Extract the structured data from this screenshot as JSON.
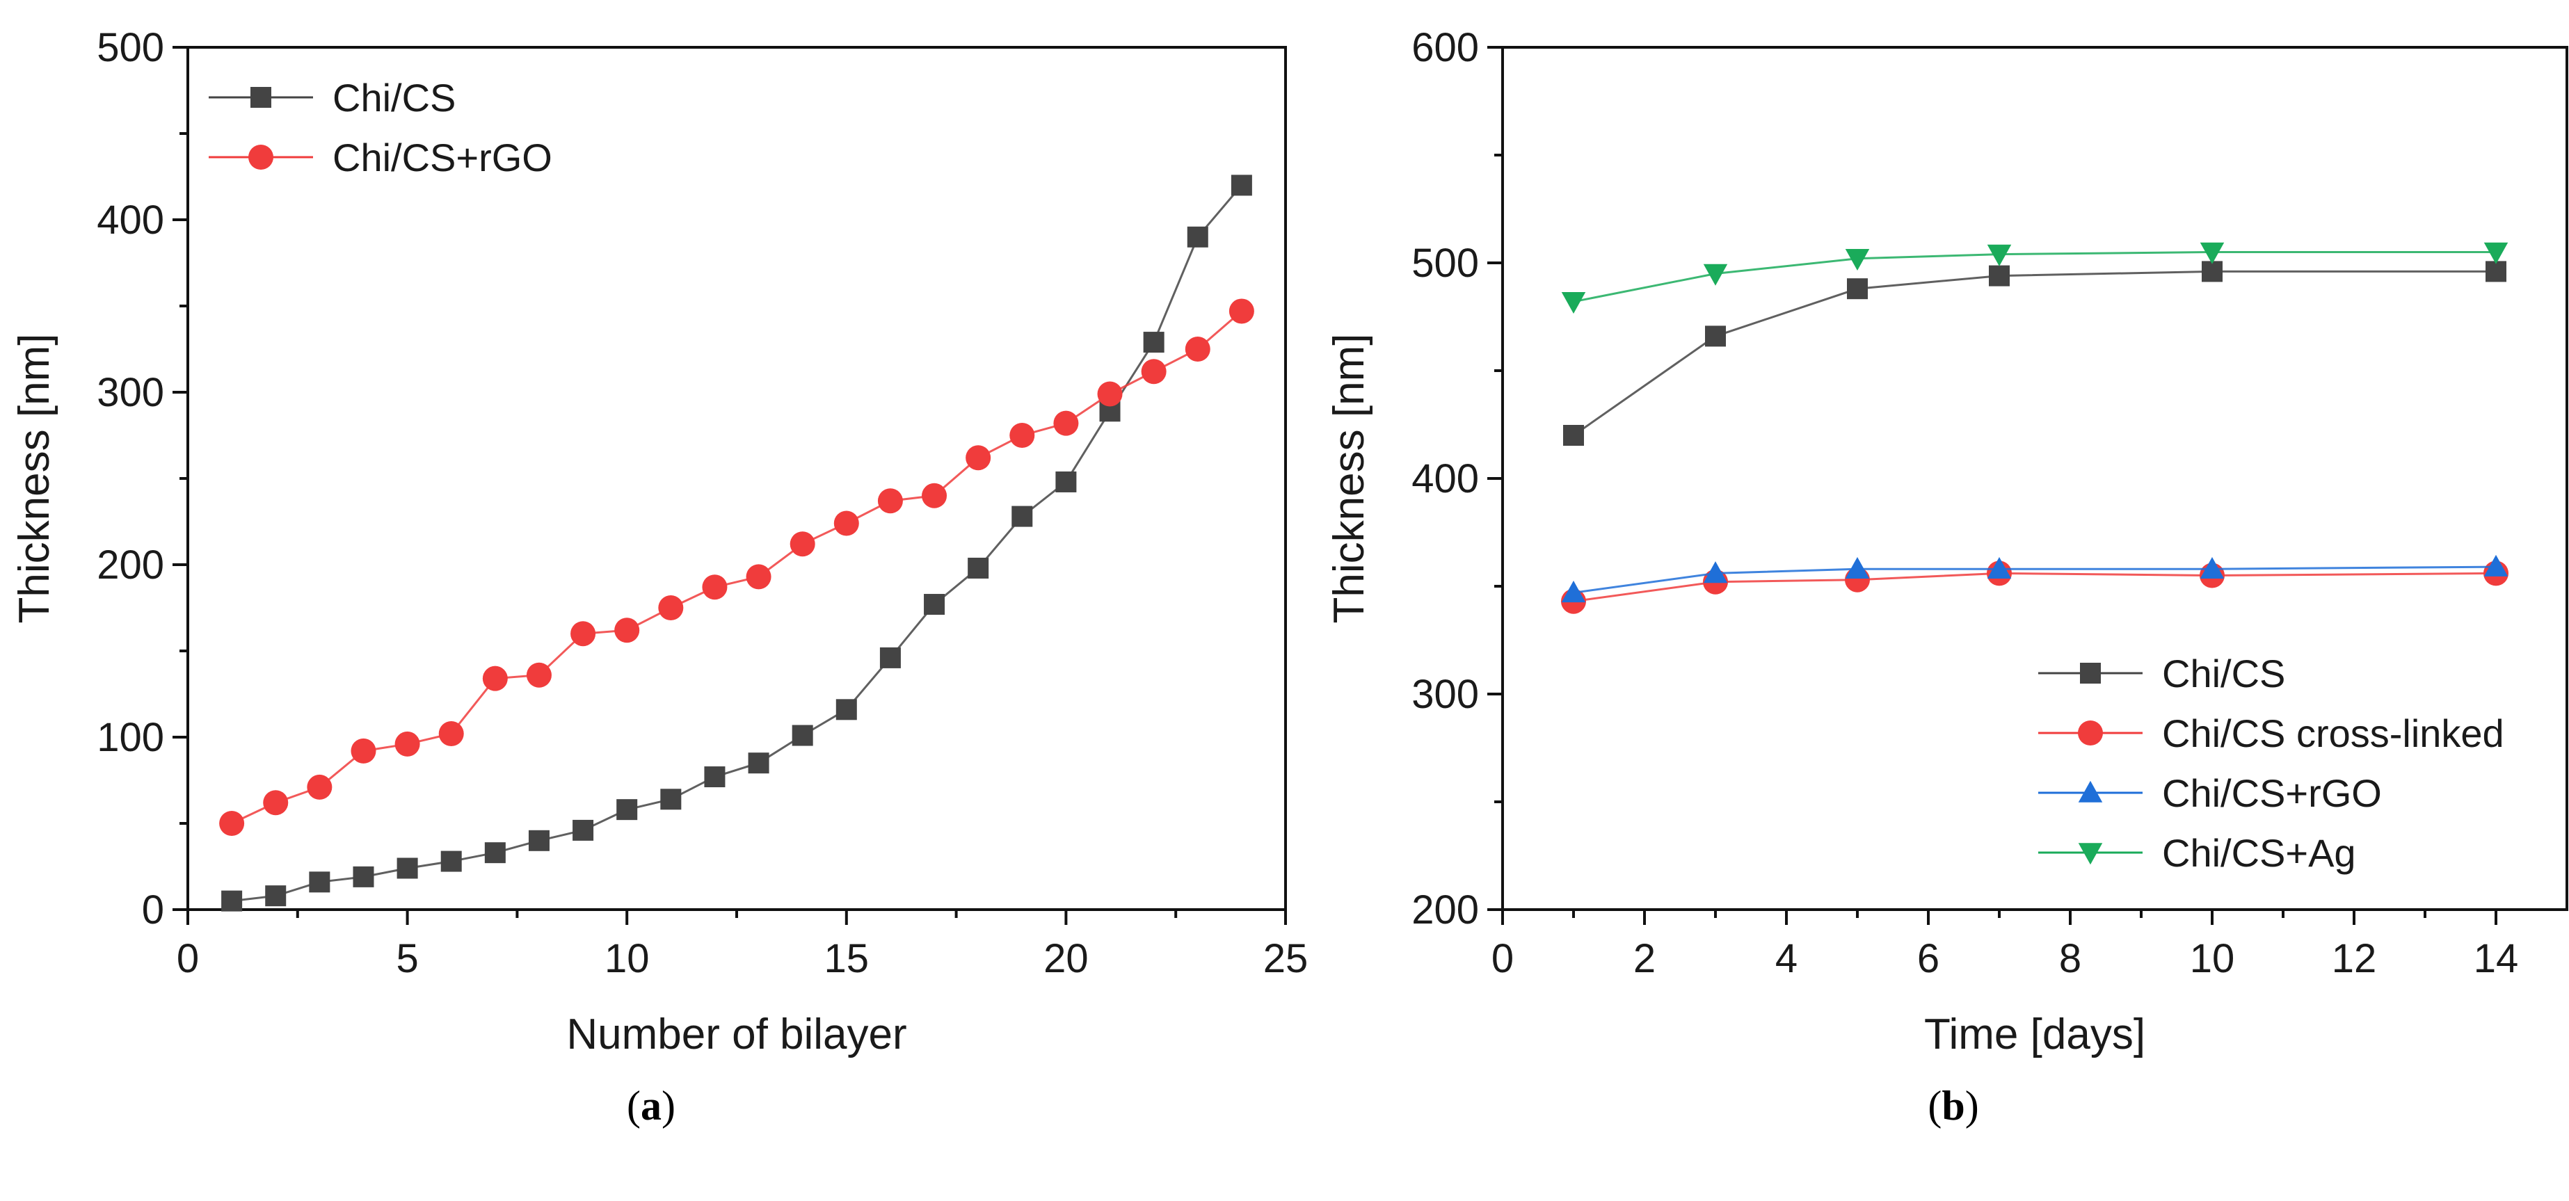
{
  "chart_data": [
    {
      "type": "line",
      "panel_label": "a",
      "title": "",
      "xlabel": "Number of bilayer",
      "ylabel": "Thickness [nm]",
      "xlim": [
        0,
        25
      ],
      "ylim": [
        0,
        500
      ],
      "xticks": [
        0,
        5,
        10,
        15,
        20,
        25
      ],
      "yticks": [
        0,
        100,
        200,
        300,
        400,
        500
      ],
      "legend_position": "top-left",
      "grid": false,
      "series": [
        {
          "name": "Chi/CS",
          "color": "#444444",
          "marker": "square",
          "x": [
            1,
            2,
            3,
            4,
            5,
            6,
            7,
            8,
            9,
            10,
            11,
            12,
            13,
            14,
            15,
            16,
            17,
            18,
            19,
            20,
            21,
            22,
            23,
            24
          ],
          "y": [
            5,
            8,
            16,
            19,
            24,
            28,
            33,
            40,
            46,
            58,
            64,
            77,
            85,
            101,
            116,
            146,
            177,
            198,
            228,
            248,
            289,
            329,
            390,
            420
          ]
        },
        {
          "name": "Chi/CS+rGO",
          "color": "#f03c3c",
          "marker": "circle",
          "x": [
            1,
            2,
            3,
            4,
            5,
            6,
            7,
            8,
            9,
            10,
            11,
            12,
            13,
            14,
            15,
            16,
            17,
            18,
            19,
            20,
            21,
            22,
            23,
            24
          ],
          "y": [
            50,
            62,
            71,
            92,
            96,
            102,
            134,
            136,
            160,
            162,
            175,
            187,
            193,
            212,
            224,
            237,
            240,
            262,
            275,
            282,
            299,
            312,
            325,
            347
          ]
        }
      ]
    },
    {
      "type": "line",
      "panel_label": "b",
      "title": "",
      "xlabel": "Time [days]",
      "ylabel": "Thickness [nm]",
      "xlim": [
        0,
        15
      ],
      "ylim": [
        200,
        600
      ],
      "xticks": [
        0,
        2,
        4,
        6,
        8,
        10,
        12,
        14
      ],
      "yticks": [
        200,
        300,
        400,
        500,
        600
      ],
      "legend_position": "bottom-right",
      "grid": false,
      "series": [
        {
          "name": "Chi/CS",
          "color": "#444444",
          "marker": "square",
          "x": [
            1,
            3,
            5,
            7,
            10,
            14
          ],
          "y": [
            420,
            466,
            488,
            494,
            496,
            496
          ]
        },
        {
          "name": "Chi/CS cross-linked",
          "color": "#f03c3c",
          "marker": "circle",
          "x": [
            1,
            3,
            5,
            7,
            10,
            14
          ],
          "y": [
            343,
            352,
            353,
            356,
            355,
            356
          ]
        },
        {
          "name": "Chi/CS+rGO",
          "color": "#1f6fd8",
          "marker": "triangle-up",
          "x": [
            1,
            3,
            5,
            7,
            10,
            14
          ],
          "y": [
            347,
            356,
            358,
            358,
            358,
            359
          ]
        },
        {
          "name": "Chi/CS+Ag",
          "color": "#1aab5a",
          "marker": "triangle-down",
          "x": [
            1,
            3,
            5,
            7,
            10,
            14
          ],
          "y": [
            482,
            495,
            502,
            504,
            505,
            505
          ]
        }
      ]
    }
  ]
}
